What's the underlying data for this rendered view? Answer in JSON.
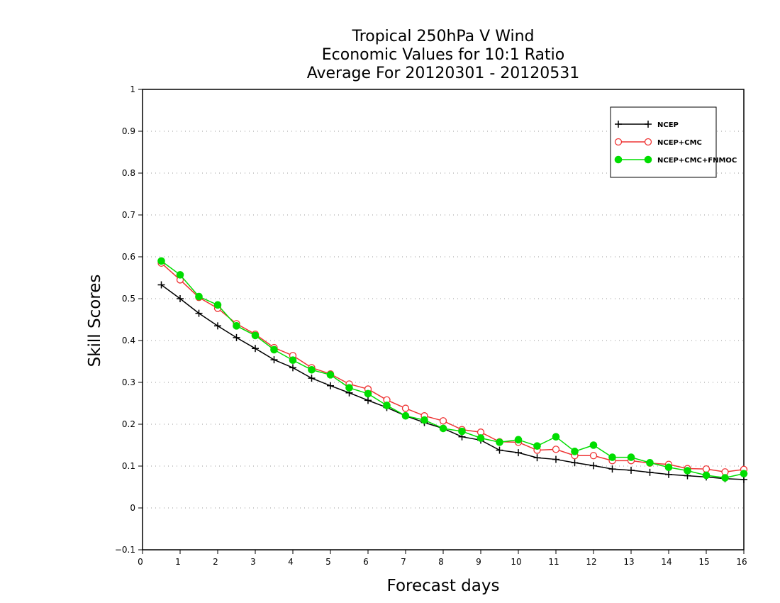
{
  "chart_data": {
    "type": "line",
    "title": [
      "Tropical 250hPa V Wind",
      "Economic Values for 10:1 Ratio",
      "Average For 20120301 - 20120531"
    ],
    "xlabel": "Forecast days",
    "ylabel": "Skill Scores",
    "xlim": [
      0,
      16
    ],
    "ylim": [
      -0.1,
      1
    ],
    "xticks": [
      "0",
      "1",
      "2",
      "3",
      "4",
      "5",
      "6",
      "7",
      "8",
      "9",
      "10",
      "11",
      "12",
      "13",
      "14",
      "15",
      "16"
    ],
    "yticks": [
      "−0.1",
      "0",
      "0.1",
      "0.2",
      "0.3",
      "0.4",
      "0.5",
      "0.6",
      "0.7",
      "0.8",
      "0.9",
      "1"
    ],
    "grid": "horizontal dotted",
    "legend_position": "top-right",
    "x": [
      0.5,
      1,
      1.5,
      2,
      2.5,
      3,
      3.5,
      4,
      4.5,
      5,
      5.5,
      6,
      6.5,
      7,
      7.5,
      8,
      8.5,
      9,
      9.5,
      10,
      10.5,
      11,
      11.5,
      12,
      12.5,
      13,
      13.5,
      14,
      14.5,
      15,
      15.5,
      16
    ],
    "series": [
      {
        "name": "NCEP",
        "color": "#000000",
        "marker": "plus",
        "values": [
          0.533,
          0.5,
          0.465,
          0.435,
          0.407,
          0.381,
          0.354,
          0.335,
          0.31,
          0.292,
          0.275,
          0.257,
          0.24,
          0.22,
          0.204,
          0.19,
          0.17,
          0.162,
          0.138,
          0.132,
          0.12,
          0.116,
          0.108,
          0.101,
          0.093,
          0.09,
          0.085,
          0.08,
          0.077,
          0.074,
          0.07,
          0.068
        ]
      },
      {
        "name": "NCEP+CMC",
        "color": "#ee3333",
        "marker": "open-circle",
        "values": [
          0.585,
          0.545,
          0.503,
          0.477,
          0.44,
          0.415,
          0.383,
          0.364,
          0.335,
          0.32,
          0.296,
          0.284,
          0.258,
          0.238,
          0.22,
          0.208,
          0.187,
          0.181,
          0.158,
          0.157,
          0.138,
          0.14,
          0.125,
          0.125,
          0.113,
          0.113,
          0.107,
          0.104,
          0.094,
          0.093,
          0.086,
          0.092
        ]
      },
      {
        "name": "NCEP+CMC+FNMOC",
        "color": "#00dd00",
        "marker": "filled-circle",
        "values": [
          0.59,
          0.557,
          0.505,
          0.485,
          0.435,
          0.412,
          0.378,
          0.353,
          0.33,
          0.318,
          0.287,
          0.273,
          0.245,
          0.22,
          0.21,
          0.19,
          0.183,
          0.167,
          0.157,
          0.163,
          0.148,
          0.17,
          0.135,
          0.15,
          0.121,
          0.121,
          0.108,
          0.097,
          0.089,
          0.078,
          0.072,
          0.082
        ]
      }
    ]
  }
}
